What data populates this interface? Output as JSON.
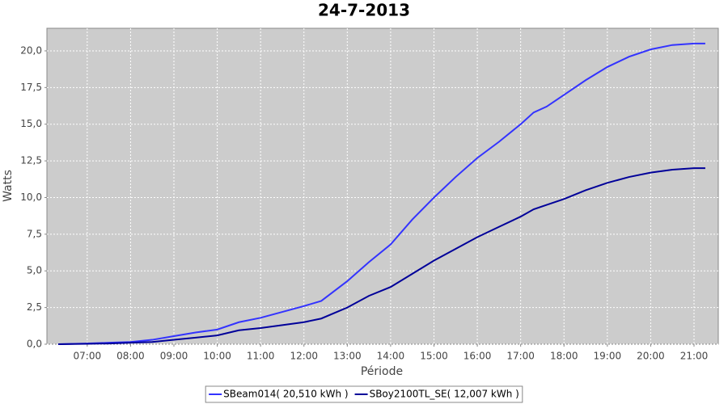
{
  "chart_data": {
    "type": "line",
    "title": "24-7-2013",
    "x_label": "Période",
    "y_label": "Watts",
    "x": [
      6.33,
      7.0,
      7.5,
      8.0,
      8.5,
      9.0,
      9.5,
      10.0,
      10.5,
      11.0,
      11.5,
      12.0,
      12.4,
      13.0,
      13.5,
      14.0,
      14.5,
      15.0,
      15.5,
      16.0,
      16.5,
      17.0,
      17.3,
      17.6,
      18.0,
      18.5,
      19.0,
      19.5,
      20.0,
      20.5,
      21.0,
      21.26
    ],
    "series": [
      {
        "name": "SBeam014( 20,510 kWh )",
        "color": "#3333ff",
        "values": [
          0,
          0.05,
          0.1,
          0.15,
          0.3,
          0.55,
          0.8,
          1.0,
          1.5,
          1.8,
          2.2,
          2.6,
          2.95,
          4.3,
          5.6,
          6.8,
          8.5,
          10.0,
          11.4,
          12.7,
          13.8,
          15.0,
          15.8,
          16.2,
          17.0,
          18.0,
          18.9,
          19.6,
          20.1,
          20.4,
          20.5,
          20.5
        ]
      },
      {
        "name": "SBoy2100TL_SE( 12,007 kWh )",
        "color": "#000099",
        "values": [
          0,
          0.03,
          0.05,
          0.1,
          0.15,
          0.3,
          0.45,
          0.6,
          0.95,
          1.1,
          1.3,
          1.5,
          1.75,
          2.5,
          3.3,
          3.9,
          4.8,
          5.7,
          6.5,
          7.3,
          8.0,
          8.7,
          9.2,
          9.5,
          9.9,
          10.5,
          11.0,
          11.4,
          11.7,
          11.9,
          12.0,
          12.0
        ]
      }
    ],
    "xlim": [
      6.07,
      21.56
    ],
    "xticks": [
      {
        "value": 7,
        "label": "07:00"
      },
      {
        "value": 8,
        "label": "08:00"
      },
      {
        "value": 9,
        "label": "09:00"
      },
      {
        "value": 10,
        "label": "10:00"
      },
      {
        "value": 11,
        "label": "11:00"
      },
      {
        "value": 12,
        "label": "12:00"
      },
      {
        "value": 13,
        "label": "13:00"
      },
      {
        "value": 14,
        "label": "14:00"
      },
      {
        "value": 15,
        "label": "15:00"
      },
      {
        "value": 16,
        "label": "16:00"
      },
      {
        "value": 17,
        "label": "17:00"
      },
      {
        "value": 18,
        "label": "18:00"
      },
      {
        "value": 19,
        "label": "19:00"
      },
      {
        "value": 20,
        "label": "20:00"
      },
      {
        "value": 21,
        "label": "21:00"
      }
    ],
    "ylim": [
      0,
      21.54
    ],
    "yticks": [
      {
        "value": 0,
        "label": "0,0"
      },
      {
        "value": 2.5,
        "label": "2,5"
      },
      {
        "value": 5,
        "label": "5,0"
      },
      {
        "value": 7.5,
        "label": "7,5"
      },
      {
        "value": 10,
        "label": "10,0"
      },
      {
        "value": 12.5,
        "label": "12,5"
      },
      {
        "value": 15,
        "label": "15,0"
      },
      {
        "value": 17.5,
        "label": "17,5"
      },
      {
        "value": 20,
        "label": "20,0"
      }
    ],
    "grid": true,
    "legend_position": "bottom"
  }
}
